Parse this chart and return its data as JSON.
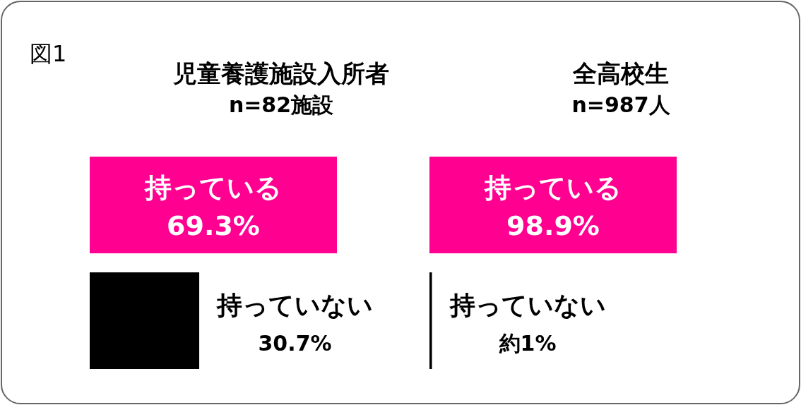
{
  "chart_data": [
    {
      "type": "bar",
      "orientation": "horizontal",
      "title": "児童養護施設入所者",
      "subtitle": "n=82施設",
      "annotations": [
        "図1"
      ],
      "categories": [
        "持っている",
        "持っていない"
      ],
      "values": [
        69.3,
        30.7
      ],
      "colors": [
        "#ff0090",
        "#000000"
      ],
      "value_labels": [
        "69.3%",
        "30.7%"
      ],
      "tick_labels": false
    },
    {
      "type": "bar",
      "orientation": "horizontal",
      "title": "全高校生",
      "subtitle": "n=987人",
      "categories": [
        "持っている",
        "持っていない"
      ],
      "values": [
        98.9,
        1
      ],
      "colors": [
        "#ff0090",
        "#000000"
      ],
      "value_labels": [
        "98.9%",
        "約1%"
      ],
      "tick_labels": false
    }
  ]
}
